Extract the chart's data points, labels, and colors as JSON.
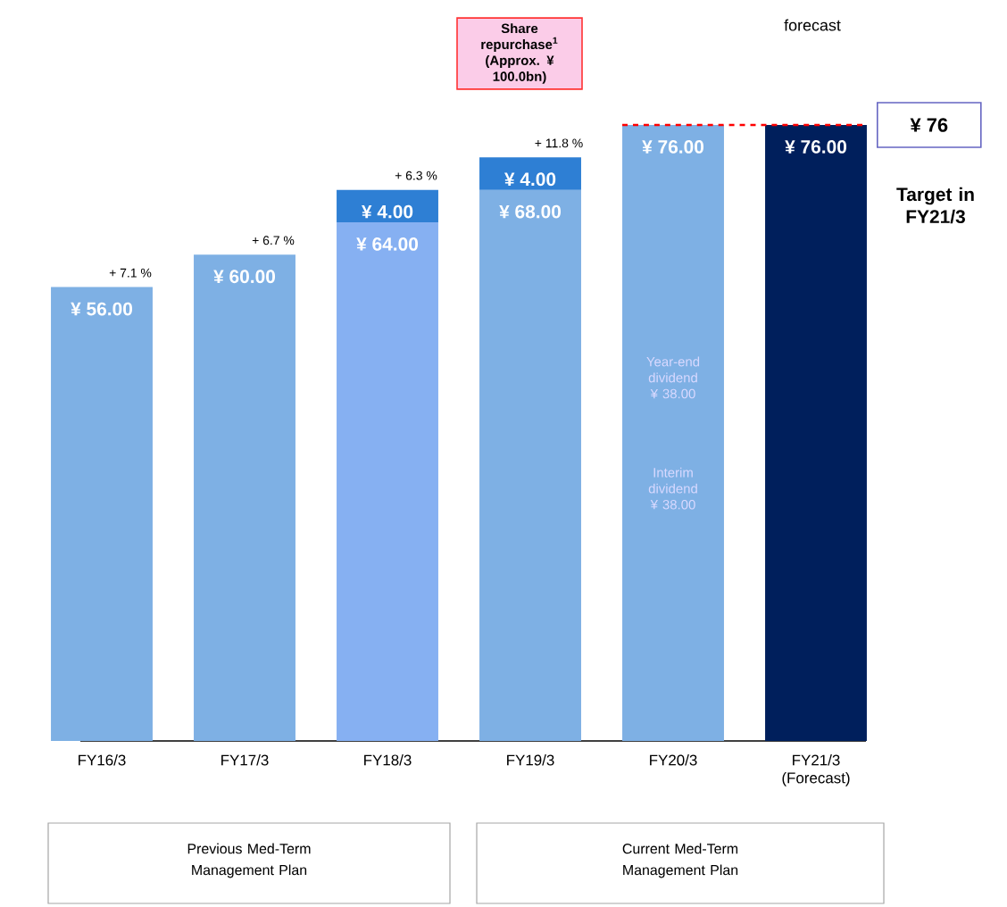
{
  "chart_data": {
    "type": "bar",
    "stacked": true,
    "categories": [
      "FY16/3",
      "FY17/3",
      "FY18/3",
      "FY19/3",
      "FY20/3",
      "FY21/3 (Forecast)"
    ],
    "series": [
      {
        "values": [
          56,
          60,
          64,
          68,
          76,
          76
        ],
        "colors": [
          "#7eb0e4",
          "#7eb0e4",
          "#86b0f2",
          "#7eb0e4",
          "#7eb0e4",
          "#001f5c"
        ],
        "value_labels": [
          "¥ 56.00",
          "¥ 60.00",
          "¥ 64.00",
          "¥ 68.00",
          "¥ 76.00",
          "¥ 76.00"
        ]
      },
      {
        "values": [
          null,
          null,
          4,
          4,
          null,
          null
        ],
        "color": "#2e7fd4",
        "value_labels": [
          null,
          null,
          "¥ 4.00",
          "¥ 4.00",
          null,
          null
        ]
      }
    ],
    "tick_labels": "x",
    "ref_lines": [
      {
        "axis": "y",
        "value": 76,
        "label": "¥ 76",
        "color": "#ff0000",
        "line_style": "dashed"
      }
    ],
    "annotations": [
      "+ 7.1 %",
      "+ 6.7 %",
      "+ 6.3 %",
      "+ 11.8 %",
      "Share repurchase$^{1}$ (Approx. ¥ 100.0bn)",
      "forecast",
      "Target in FY21/3",
      "Year-end dividend ¥ 38.00",
      "Interim dividend ¥ 38.00",
      "Previous Med-Term Management Plan",
      "Current Med-Term Management Plan"
    ]
  }
}
